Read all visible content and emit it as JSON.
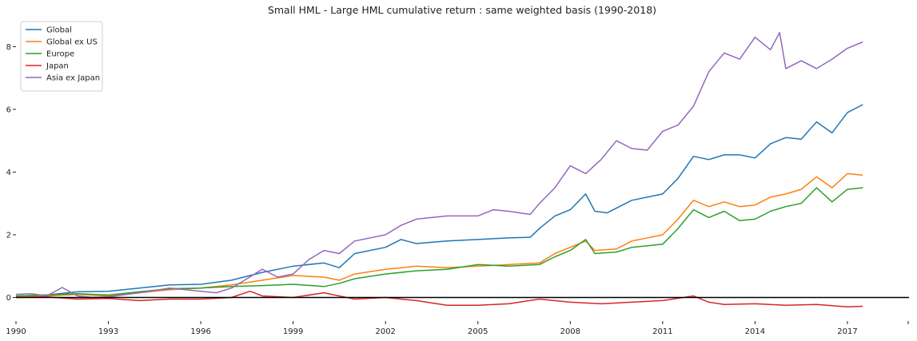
{
  "chart_data": {
    "type": "line",
    "title": "Small HML - Large HML cumulative return : same weighted basis (1990-2018)",
    "xlabel": "",
    "ylabel": "",
    "xlim": [
      1990,
      2019
    ],
    "ylim": [
      -0.7,
      8.8
    ],
    "x_ticks": [
      "1990",
      "1993",
      "1996",
      "1999",
      "2002",
      "2005",
      "2008",
      "2011",
      "2014",
      "2017"
    ],
    "y_ticks": [
      "0",
      "2",
      "4",
      "6",
      "8"
    ],
    "grid": false,
    "legend_position": "top-left",
    "series": [
      {
        "name": "Global",
        "color": "#1f77b4",
        "points": [
          [
            1990,
            0.05
          ],
          [
            1991,
            0.08
          ],
          [
            1992,
            0.18
          ],
          [
            1993,
            0.2
          ],
          [
            1994,
            0.3
          ],
          [
            1995,
            0.4
          ],
          [
            1996,
            0.42
          ],
          [
            1997,
            0.55
          ],
          [
            1998,
            0.8
          ],
          [
            1999,
            1.0
          ],
          [
            2000,
            1.1
          ],
          [
            2000.5,
            0.95
          ],
          [
            2001,
            1.4
          ],
          [
            2002,
            1.6
          ],
          [
            2002.5,
            1.85
          ],
          [
            2003,
            1.72
          ],
          [
            2004,
            1.8
          ],
          [
            2005,
            1.85
          ],
          [
            2006,
            1.9
          ],
          [
            2006.7,
            1.92
          ],
          [
            2007,
            2.2
          ],
          [
            2007.5,
            2.6
          ],
          [
            2008,
            2.8
          ],
          [
            2008.5,
            3.3
          ],
          [
            2008.8,
            2.75
          ],
          [
            2009.2,
            2.7
          ],
          [
            2010,
            3.1
          ],
          [
            2011,
            3.3
          ],
          [
            2011.5,
            3.8
          ],
          [
            2012,
            4.5
          ],
          [
            2012.5,
            4.4
          ],
          [
            2013,
            4.55
          ],
          [
            2013.5,
            4.55
          ],
          [
            2014,
            4.45
          ],
          [
            2014.5,
            4.9
          ],
          [
            2015,
            5.1
          ],
          [
            2015.5,
            5.05
          ],
          [
            2016,
            5.6
          ],
          [
            2016.5,
            5.25
          ],
          [
            2017,
            5.9
          ],
          [
            2017.5,
            6.15
          ]
        ]
      },
      {
        "name": "Global ex US",
        "color": "#ff7f0e",
        "points": [
          [
            1990,
            0.02
          ],
          [
            1991,
            0.05
          ],
          [
            1992,
            0.1
          ],
          [
            1993,
            0.05
          ],
          [
            1994,
            0.15
          ],
          [
            1995,
            0.25
          ],
          [
            1996,
            0.3
          ],
          [
            1997,
            0.4
          ],
          [
            1998,
            0.55
          ],
          [
            1999,
            0.7
          ],
          [
            2000,
            0.65
          ],
          [
            2000.5,
            0.55
          ],
          [
            2001,
            0.75
          ],
          [
            2002,
            0.9
          ],
          [
            2003,
            1.0
          ],
          [
            2004,
            0.95
          ],
          [
            2005,
            1.0
          ],
          [
            2006,
            1.05
          ],
          [
            2007,
            1.1
          ],
          [
            2007.5,
            1.4
          ],
          [
            2008,
            1.6
          ],
          [
            2008.5,
            1.8
          ],
          [
            2008.8,
            1.5
          ],
          [
            2009.5,
            1.55
          ],
          [
            2010,
            1.8
          ],
          [
            2011,
            2.0
          ],
          [
            2011.5,
            2.5
          ],
          [
            2012,
            3.1
          ],
          [
            2012.5,
            2.9
          ],
          [
            2013,
            3.05
          ],
          [
            2013.5,
            2.9
          ],
          [
            2014,
            2.95
          ],
          [
            2014.5,
            3.2
          ],
          [
            2015,
            3.3
          ],
          [
            2015.5,
            3.45
          ],
          [
            2016,
            3.85
          ],
          [
            2016.5,
            3.5
          ],
          [
            2017,
            3.95
          ],
          [
            2017.5,
            3.9
          ]
        ]
      },
      {
        "name": "Europe",
        "color": "#2ca02c",
        "points": [
          [
            1990,
            0.05
          ],
          [
            1991,
            0.08
          ],
          [
            1992,
            0.12
          ],
          [
            1993,
            0.08
          ],
          [
            1994,
            0.18
          ],
          [
            1995,
            0.28
          ],
          [
            1996,
            0.3
          ],
          [
            1997,
            0.35
          ],
          [
            1998,
            0.38
          ],
          [
            1999,
            0.42
          ],
          [
            2000,
            0.35
          ],
          [
            2000.5,
            0.45
          ],
          [
            2001,
            0.6
          ],
          [
            2002,
            0.75
          ],
          [
            2003,
            0.85
          ],
          [
            2004,
            0.9
          ],
          [
            2005,
            1.05
          ],
          [
            2006,
            1.0
          ],
          [
            2007,
            1.05
          ],
          [
            2007.5,
            1.3
          ],
          [
            2008,
            1.5
          ],
          [
            2008.5,
            1.85
          ],
          [
            2008.8,
            1.4
          ],
          [
            2009.5,
            1.45
          ],
          [
            2010,
            1.6
          ],
          [
            2011,
            1.7
          ],
          [
            2011.5,
            2.2
          ],
          [
            2012,
            2.8
          ],
          [
            2012.5,
            2.55
          ],
          [
            2013,
            2.75
          ],
          [
            2013.5,
            2.45
          ],
          [
            2014,
            2.5
          ],
          [
            2014.5,
            2.75
          ],
          [
            2015,
            2.9
          ],
          [
            2015.5,
            3.0
          ],
          [
            2016,
            3.5
          ],
          [
            2016.5,
            3.05
          ],
          [
            2017,
            3.45
          ],
          [
            2017.5,
            3.5
          ]
        ]
      },
      {
        "name": "Japan",
        "color": "#d62728",
        "points": [
          [
            1990,
            0.0
          ],
          [
            1991,
            0.02
          ],
          [
            1992,
            -0.05
          ],
          [
            1993,
            -0.03
          ],
          [
            1994,
            -0.1
          ],
          [
            1995,
            -0.05
          ],
          [
            1996,
            -0.05
          ],
          [
            1997,
            0.0
          ],
          [
            1997.6,
            0.2
          ],
          [
            1998,
            0.05
          ],
          [
            1999,
            0.0
          ],
          [
            2000,
            0.15
          ],
          [
            2000.5,
            0.05
          ],
          [
            2001,
            -0.05
          ],
          [
            2002,
            0.0
          ],
          [
            2003,
            -0.1
          ],
          [
            2004,
            -0.25
          ],
          [
            2005,
            -0.25
          ],
          [
            2006,
            -0.2
          ],
          [
            2007,
            -0.05
          ],
          [
            2008,
            -0.15
          ],
          [
            2009,
            -0.2
          ],
          [
            2010,
            -0.15
          ],
          [
            2011,
            -0.1
          ],
          [
            2012,
            0.05
          ],
          [
            2012.5,
            -0.15
          ],
          [
            2013,
            -0.22
          ],
          [
            2014,
            -0.2
          ],
          [
            2015,
            -0.25
          ],
          [
            2016,
            -0.22
          ],
          [
            2017,
            -0.3
          ],
          [
            2017.5,
            -0.28
          ]
        ]
      },
      {
        "name": "Asia ex Japan",
        "color": "#9467bd",
        "points": [
          [
            1990,
            0.1
          ],
          [
            1990.5,
            0.12
          ],
          [
            1991,
            0.05
          ],
          [
            1991.5,
            0.32
          ],
          [
            1992,
            0.05
          ],
          [
            1992.5,
            0.0
          ],
          [
            1993,
            0.02
          ],
          [
            1994,
            0.15
          ],
          [
            1995,
            0.3
          ],
          [
            1996,
            0.2
          ],
          [
            1996.5,
            0.15
          ],
          [
            1997,
            0.3
          ],
          [
            1997.5,
            0.6
          ],
          [
            1998,
            0.9
          ],
          [
            1998.5,
            0.65
          ],
          [
            1999,
            0.75
          ],
          [
            1999.5,
            1.2
          ],
          [
            2000,
            1.5
          ],
          [
            2000.5,
            1.4
          ],
          [
            2001,
            1.8
          ],
          [
            2002,
            2.0
          ],
          [
            2002.5,
            2.3
          ],
          [
            2003,
            2.5
          ],
          [
            2004,
            2.6
          ],
          [
            2005,
            2.6
          ],
          [
            2005.5,
            2.8
          ],
          [
            2006,
            2.75
          ],
          [
            2006.7,
            2.65
          ],
          [
            2007,
            3.0
          ],
          [
            2007.5,
            3.5
          ],
          [
            2008,
            4.2
          ],
          [
            2008.5,
            3.95
          ],
          [
            2009,
            4.4
          ],
          [
            2009.5,
            5.0
          ],
          [
            2010,
            4.75
          ],
          [
            2010.5,
            4.7
          ],
          [
            2011,
            5.3
          ],
          [
            2011.5,
            5.5
          ],
          [
            2012,
            6.1
          ],
          [
            2012.5,
            7.2
          ],
          [
            2013,
            7.8
          ],
          [
            2013.5,
            7.6
          ],
          [
            2014,
            8.3
          ],
          [
            2014.5,
            7.9
          ],
          [
            2014.8,
            8.45
          ],
          [
            2015,
            7.3
          ],
          [
            2015.5,
            7.55
          ],
          [
            2016,
            7.3
          ],
          [
            2016.5,
            7.6
          ],
          [
            2017,
            7.95
          ],
          [
            2017.5,
            8.15
          ]
        ]
      }
    ]
  }
}
